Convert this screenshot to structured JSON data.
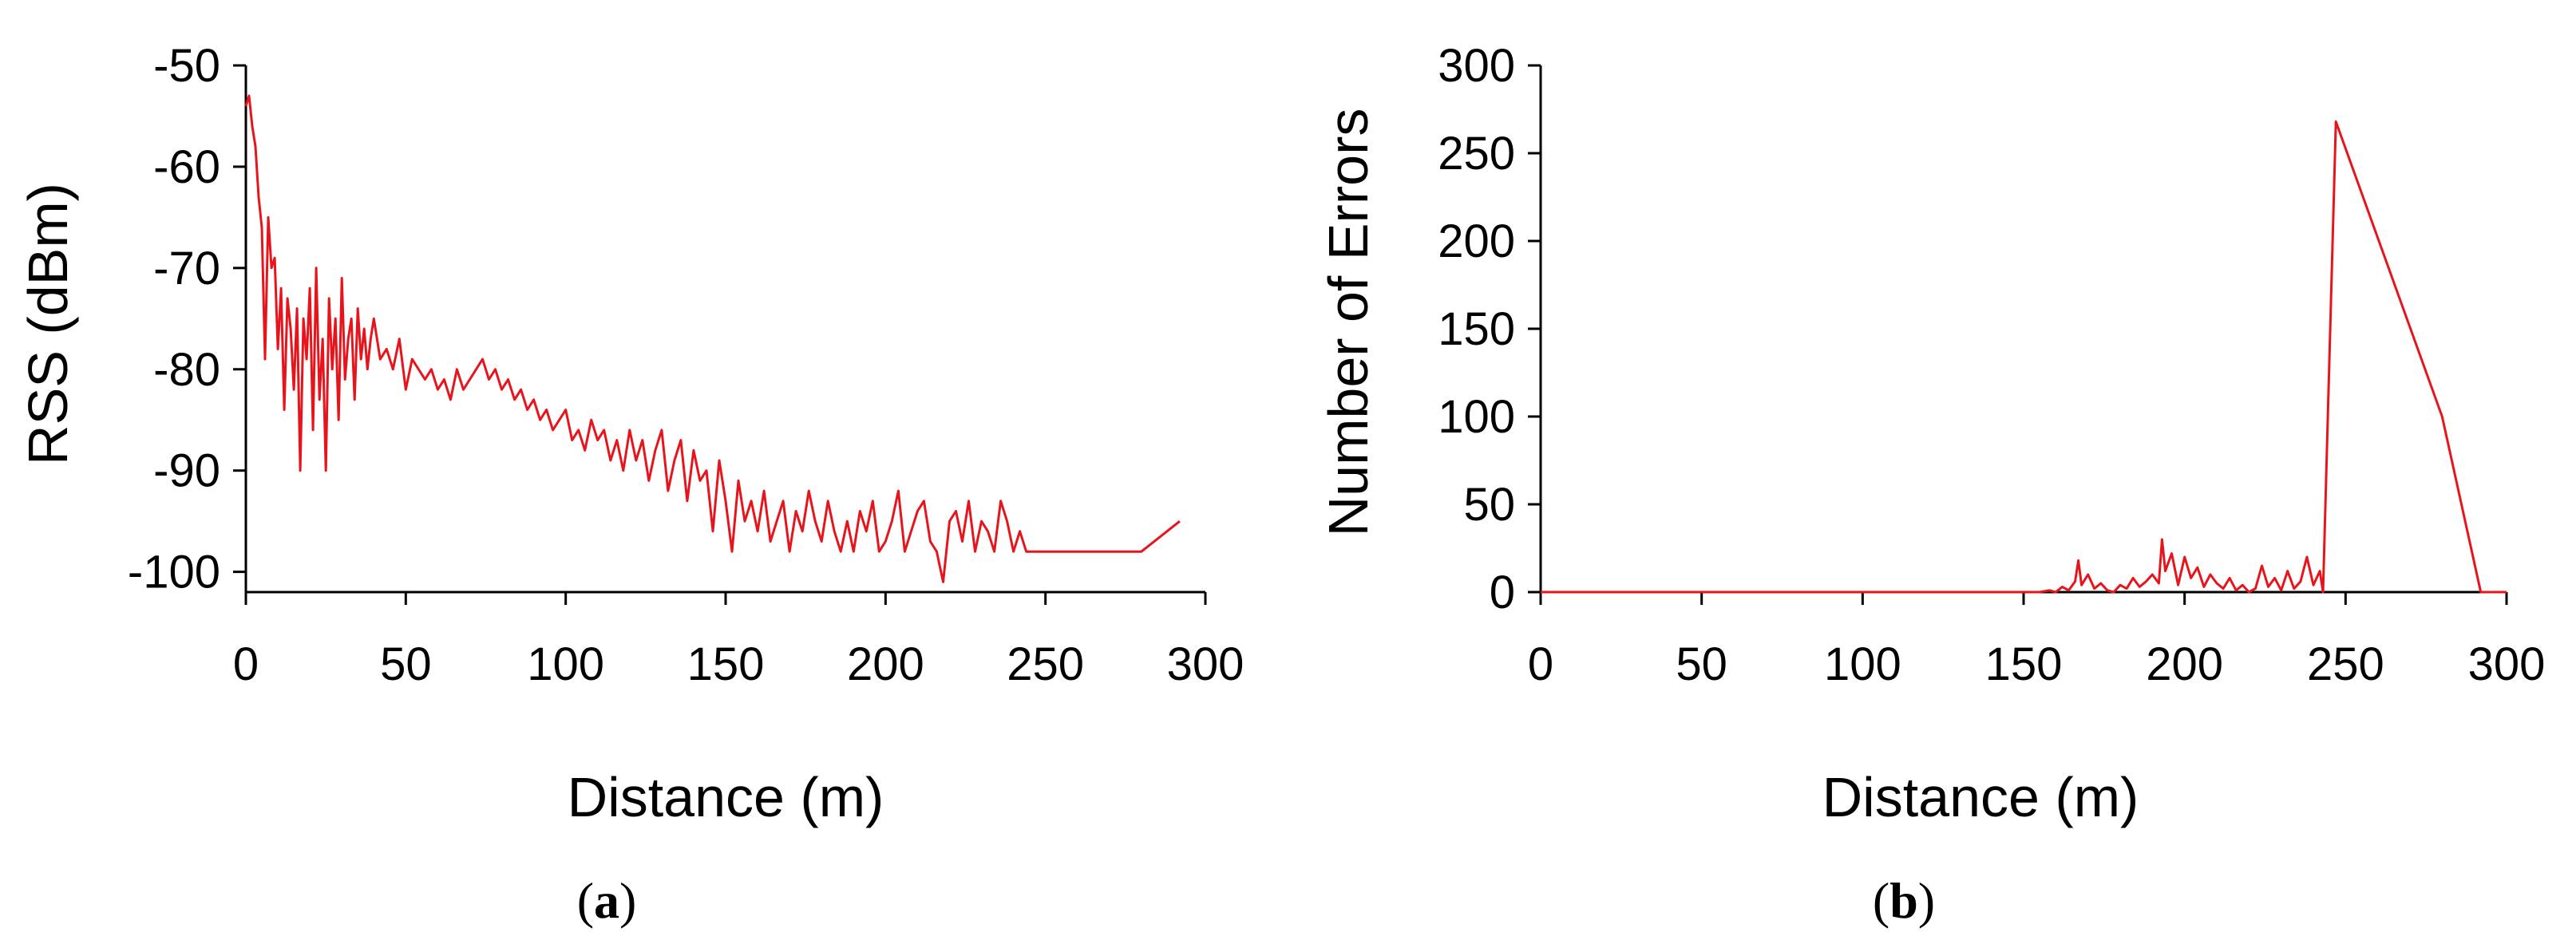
{
  "colors": {
    "series": "#e8141c",
    "axis": "#000000",
    "background": "#ffffff"
  },
  "chart_data": [
    {
      "panel": "(a)",
      "type": "line",
      "xlabel": "Distance (m)",
      "ylabel": "RSS (dBm)",
      "xlim": [
        0,
        300
      ],
      "ylim": [
        -102,
        -50
      ],
      "xticks": [
        0,
        50,
        100,
        150,
        200,
        250,
        300
      ],
      "yticks": [
        -50,
        -60,
        -70,
        -80,
        -90,
        -100
      ],
      "grid": false,
      "legend": "none",
      "series": [
        {
          "x": [
            0,
            1,
            2,
            3,
            4,
            5,
            6,
            7,
            8,
            9,
            10,
            11,
            12,
            13,
            14,
            15,
            16,
            17,
            18,
            19,
            20,
            21,
            22,
            23,
            24,
            25,
            26,
            27,
            28,
            29,
            30,
            31,
            32,
            33,
            34,
            35,
            36,
            37,
            38,
            39,
            40,
            42,
            44,
            46,
            48,
            50,
            52,
            54,
            56,
            58,
            60,
            62,
            64,
            66,
            68,
            70,
            72,
            74,
            76,
            78,
            80,
            82,
            84,
            86,
            88,
            90,
            92,
            94,
            96,
            98,
            100,
            102,
            104,
            106,
            108,
            110,
            112,
            114,
            116,
            118,
            120,
            122,
            124,
            126,
            128,
            130,
            132,
            134,
            136,
            138,
            140,
            142,
            144,
            146,
            148,
            150,
            152,
            154,
            156,
            158,
            160,
            162,
            164,
            166,
            168,
            170,
            172,
            174,
            176,
            178,
            180,
            182,
            184,
            186,
            188,
            190,
            192,
            194,
            196,
            198,
            200,
            202,
            204,
            206,
            208,
            210,
            212,
            214,
            216,
            218,
            220,
            222,
            224,
            226,
            228,
            230,
            232,
            234,
            236,
            238,
            240,
            242,
            244,
            280,
            292
          ],
          "y": [
            -54,
            -53,
            -56,
            -58,
            -63,
            -66,
            -79,
            -65,
            -70,
            -69,
            -78,
            -72,
            -84,
            -73,
            -76,
            -82,
            -74,
            -90,
            -75,
            -79,
            -72,
            -86,
            -70,
            -83,
            -77,
            -90,
            -73,
            -80,
            -75,
            -85,
            -71,
            -81,
            -77,
            -75,
            -83,
            -74,
            -79,
            -76,
            -80,
            -77,
            -75,
            -79,
            -78,
            -80,
            -77,
            -82,
            -79,
            -80,
            -81,
            -80,
            -82,
            -81,
            -83,
            -80,
            -82,
            -81,
            -80,
            -79,
            -81,
            -80,
            -82,
            -81,
            -83,
            -82,
            -84,
            -83,
            -85,
            -84,
            -86,
            -85,
            -84,
            -87,
            -86,
            -88,
            -85,
            -87,
            -86,
            -89,
            -87,
            -90,
            -86,
            -89,
            -87,
            -91,
            -88,
            -86,
            -92,
            -89,
            -87,
            -93,
            -88,
            -91,
            -90,
            -96,
            -89,
            -93,
            -98,
            -91,
            -95,
            -93,
            -96,
            -92,
            -97,
            -95,
            -93,
            -98,
            -94,
            -96,
            -92,
            -95,
            -97,
            -93,
            -96,
            -98,
            -95,
            -98,
            -94,
            -96,
            -93,
            -98,
            -97,
            -95,
            -92,
            -98,
            -96,
            -94,
            -93,
            -97,
            -98,
            -101,
            -95,
            -94,
            -97,
            -93,
            -98,
            -95,
            -96,
            -98,
            -93,
            -95,
            -98,
            -96,
            -98,
            -98,
            -95
          ]
        }
      ]
    },
    {
      "panel": "(b)",
      "type": "line",
      "xlabel": "Distance (m)",
      "ylabel": "Number of Errors",
      "xlim": [
        0,
        300
      ],
      "ylim": [
        0,
        300
      ],
      "xticks": [
        0,
        50,
        100,
        150,
        200,
        250,
        300
      ],
      "yticks": [
        0,
        50,
        100,
        150,
        200,
        250,
        300
      ],
      "grid": false,
      "legend": "none",
      "series": [
        {
          "x": [
            0,
            155,
            158,
            160,
            162,
            164,
            166,
            167,
            168,
            170,
            172,
            174,
            176,
            178,
            180,
            182,
            184,
            186,
            188,
            190,
            192,
            193,
            194,
            196,
            198,
            200,
            202,
            204,
            206,
            208,
            210,
            212,
            214,
            216,
            218,
            220,
            222,
            224,
            226,
            228,
            230,
            232,
            234,
            236,
            238,
            240,
            242,
            243,
            247,
            280,
            292,
            300
          ],
          "y": [
            0,
            0,
            1,
            0,
            3,
            1,
            6,
            18,
            4,
            10,
            2,
            5,
            1,
            0,
            4,
            2,
            8,
            3,
            6,
            10,
            5,
            30,
            12,
            22,
            4,
            20,
            8,
            14,
            3,
            10,
            5,
            2,
            8,
            1,
            4,
            0,
            2,
            15,
            3,
            8,
            1,
            12,
            2,
            6,
            20,
            4,
            12,
            0,
            268,
            100,
            0,
            0
          ]
        }
      ]
    }
  ]
}
